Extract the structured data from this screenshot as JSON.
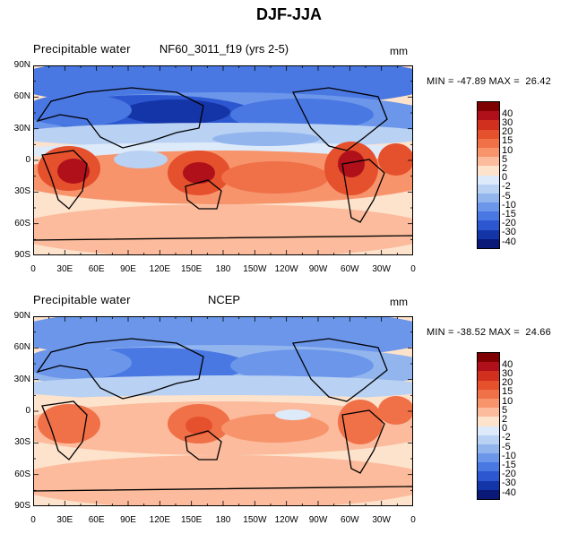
{
  "figure_title": "DJF-JJA",
  "panels": [
    {
      "variable": "Precipitable water",
      "dataset": "NF60_3011_f19 (yrs 2-5)",
      "units": "mm",
      "min_max_text": "MIN = -47.89 MAX =  26.42"
    },
    {
      "variable": "Precipitable water",
      "dataset": "NCEP",
      "units": "mm",
      "min_max_text": "MIN = -38.52 MAX =  24.66"
    }
  ],
  "lat_labels": [
    "90N",
    "60N",
    "30N",
    "0",
    "30S",
    "60S",
    "90S"
  ],
  "lon_labels": [
    "0",
    "30E",
    "60E",
    "90E",
    "120E",
    "150E",
    "180",
    "150W",
    "120W",
    "90W",
    "60W",
    "30W",
    "0"
  ],
  "colorbar": {
    "levels": [
      "40",
      "30",
      "20",
      "15",
      "10",
      "5",
      "2",
      "0",
      "-2",
      "-5",
      "-10",
      "-15",
      "-20",
      "-30",
      "-40"
    ],
    "colors": [
      "#7f0000",
      "#b0101a",
      "#d2301e",
      "#e5502d",
      "#f07048",
      "#f7946c",
      "#fbbb9c",
      "#fde2cc",
      "#ddeafa",
      "#b9d1f3",
      "#92b5ee",
      "#6b96ea",
      "#4a78e2",
      "#2c57d0",
      "#1435a8",
      "#0a1878"
    ]
  }
}
